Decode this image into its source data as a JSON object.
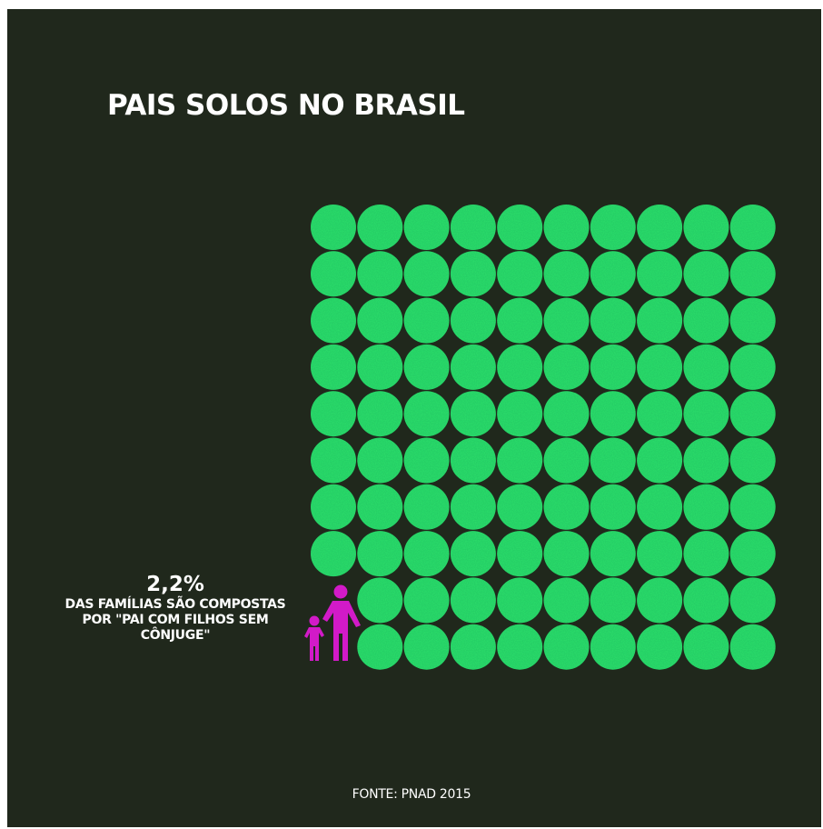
{
  "title": "PAIS SOLOS NO BRASIL",
  "callout": {
    "value": "2,2%",
    "text": "DAS FAMÍLIAS SÃO COMPOSTAS POR \"PAI COM FILHOS SEM CÔNJUGE\""
  },
  "source": "FONTE: PNAD 2015",
  "icon": "father-with-child-icon",
  "colors": {
    "background": "#20281c",
    "dot": "#2ee06a",
    "highlight": "#d21ac8",
    "text": "#ffffff"
  },
  "chart_data": {
    "type": "waffle",
    "title": "PAIS SOLOS NO BRASIL",
    "grid": [
      10,
      10
    ],
    "total": 100,
    "highlight_value": 2.2,
    "highlight_label": "2,2%",
    "highlight_cells": 2,
    "highlight_position": "bottom-left"
  }
}
